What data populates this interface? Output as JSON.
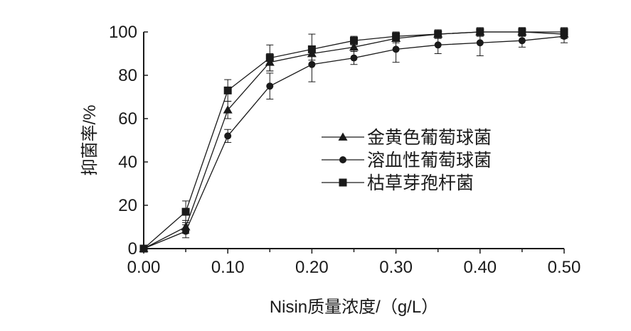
{
  "chart_data": {
    "type": "line",
    "xlabel": "Nisin质量浓度/（g/L）",
    "ylabel": "抑菌率/%",
    "xlim": [
      0,
      0.5
    ],
    "ylim": [
      0,
      100
    ],
    "x_ticks": [
      "0.00",
      "0.10",
      "0.20",
      "0.30",
      "0.40",
      "0.50"
    ],
    "y_ticks": [
      "0",
      "20",
      "40",
      "60",
      "80",
      "100"
    ],
    "x": [
      0,
      0.05,
      0.1,
      0.15,
      0.2,
      0.25,
      0.3,
      0.35,
      0.4,
      0.45,
      0.5
    ],
    "series": [
      {
        "name": "金黄色葡萄球菌",
        "marker": "triangle",
        "values": [
          0,
          10,
          64,
          86,
          90,
          93,
          97,
          99,
          100,
          100,
          99
        ],
        "errors": [
          1,
          3,
          4,
          4,
          3,
          2,
          2,
          2,
          1,
          2,
          2
        ]
      },
      {
        "name": "溶血性葡萄球菌",
        "marker": "circle",
        "values": [
          0,
          8,
          52,
          75,
          85,
          88,
          92,
          94,
          95,
          96,
          98
        ],
        "errors": [
          1,
          3,
          3,
          6,
          8,
          3,
          6,
          4,
          6,
          3,
          3
        ]
      },
      {
        "name": "枯草芽孢杆菌",
        "marker": "square",
        "values": [
          0,
          17,
          73,
          88,
          92,
          96,
          98,
          99,
          100,
          100,
          100
        ],
        "errors": [
          1,
          5,
          5,
          6,
          7,
          2,
          2,
          1,
          2,
          2,
          2
        ]
      }
    ],
    "legend_position": "right-middle",
    "grid": false,
    "colors": {
      "line": "#1a1a1a",
      "background": "#ffffff"
    }
  }
}
